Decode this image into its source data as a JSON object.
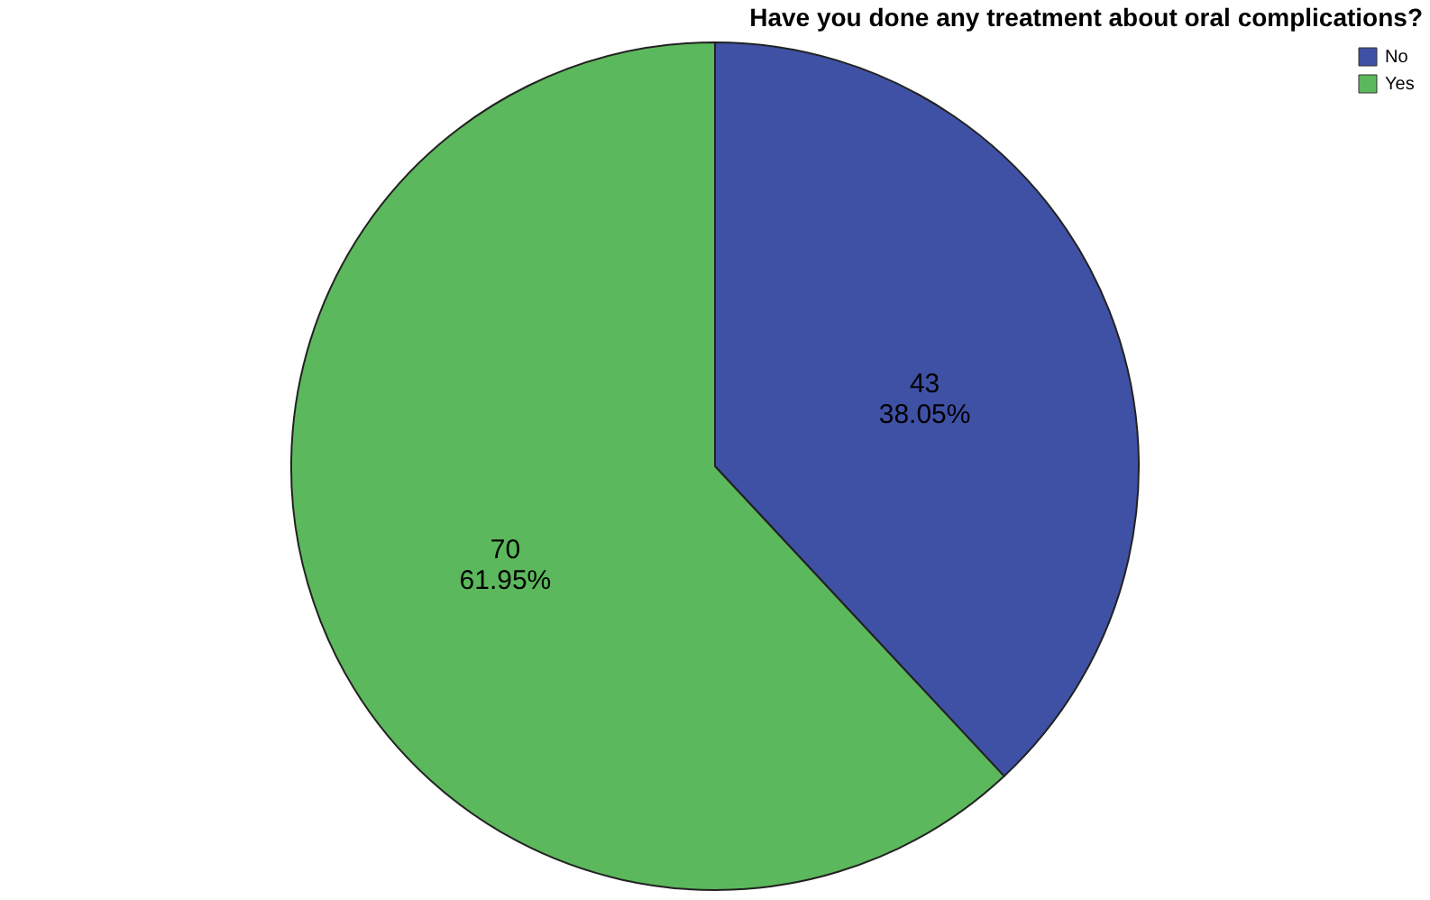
{
  "chart_data": {
    "type": "pie",
    "title": "Have you done any treatment about oral complications?",
    "categories": [
      "No",
      "Yes"
    ],
    "values": [
      43,
      70
    ],
    "colors": [
      "#3f51a5",
      "#5cb85c"
    ],
    "value_labels": [
      "43\n38.05%",
      "70\n61.95%"
    ],
    "legend": "top right"
  }
}
